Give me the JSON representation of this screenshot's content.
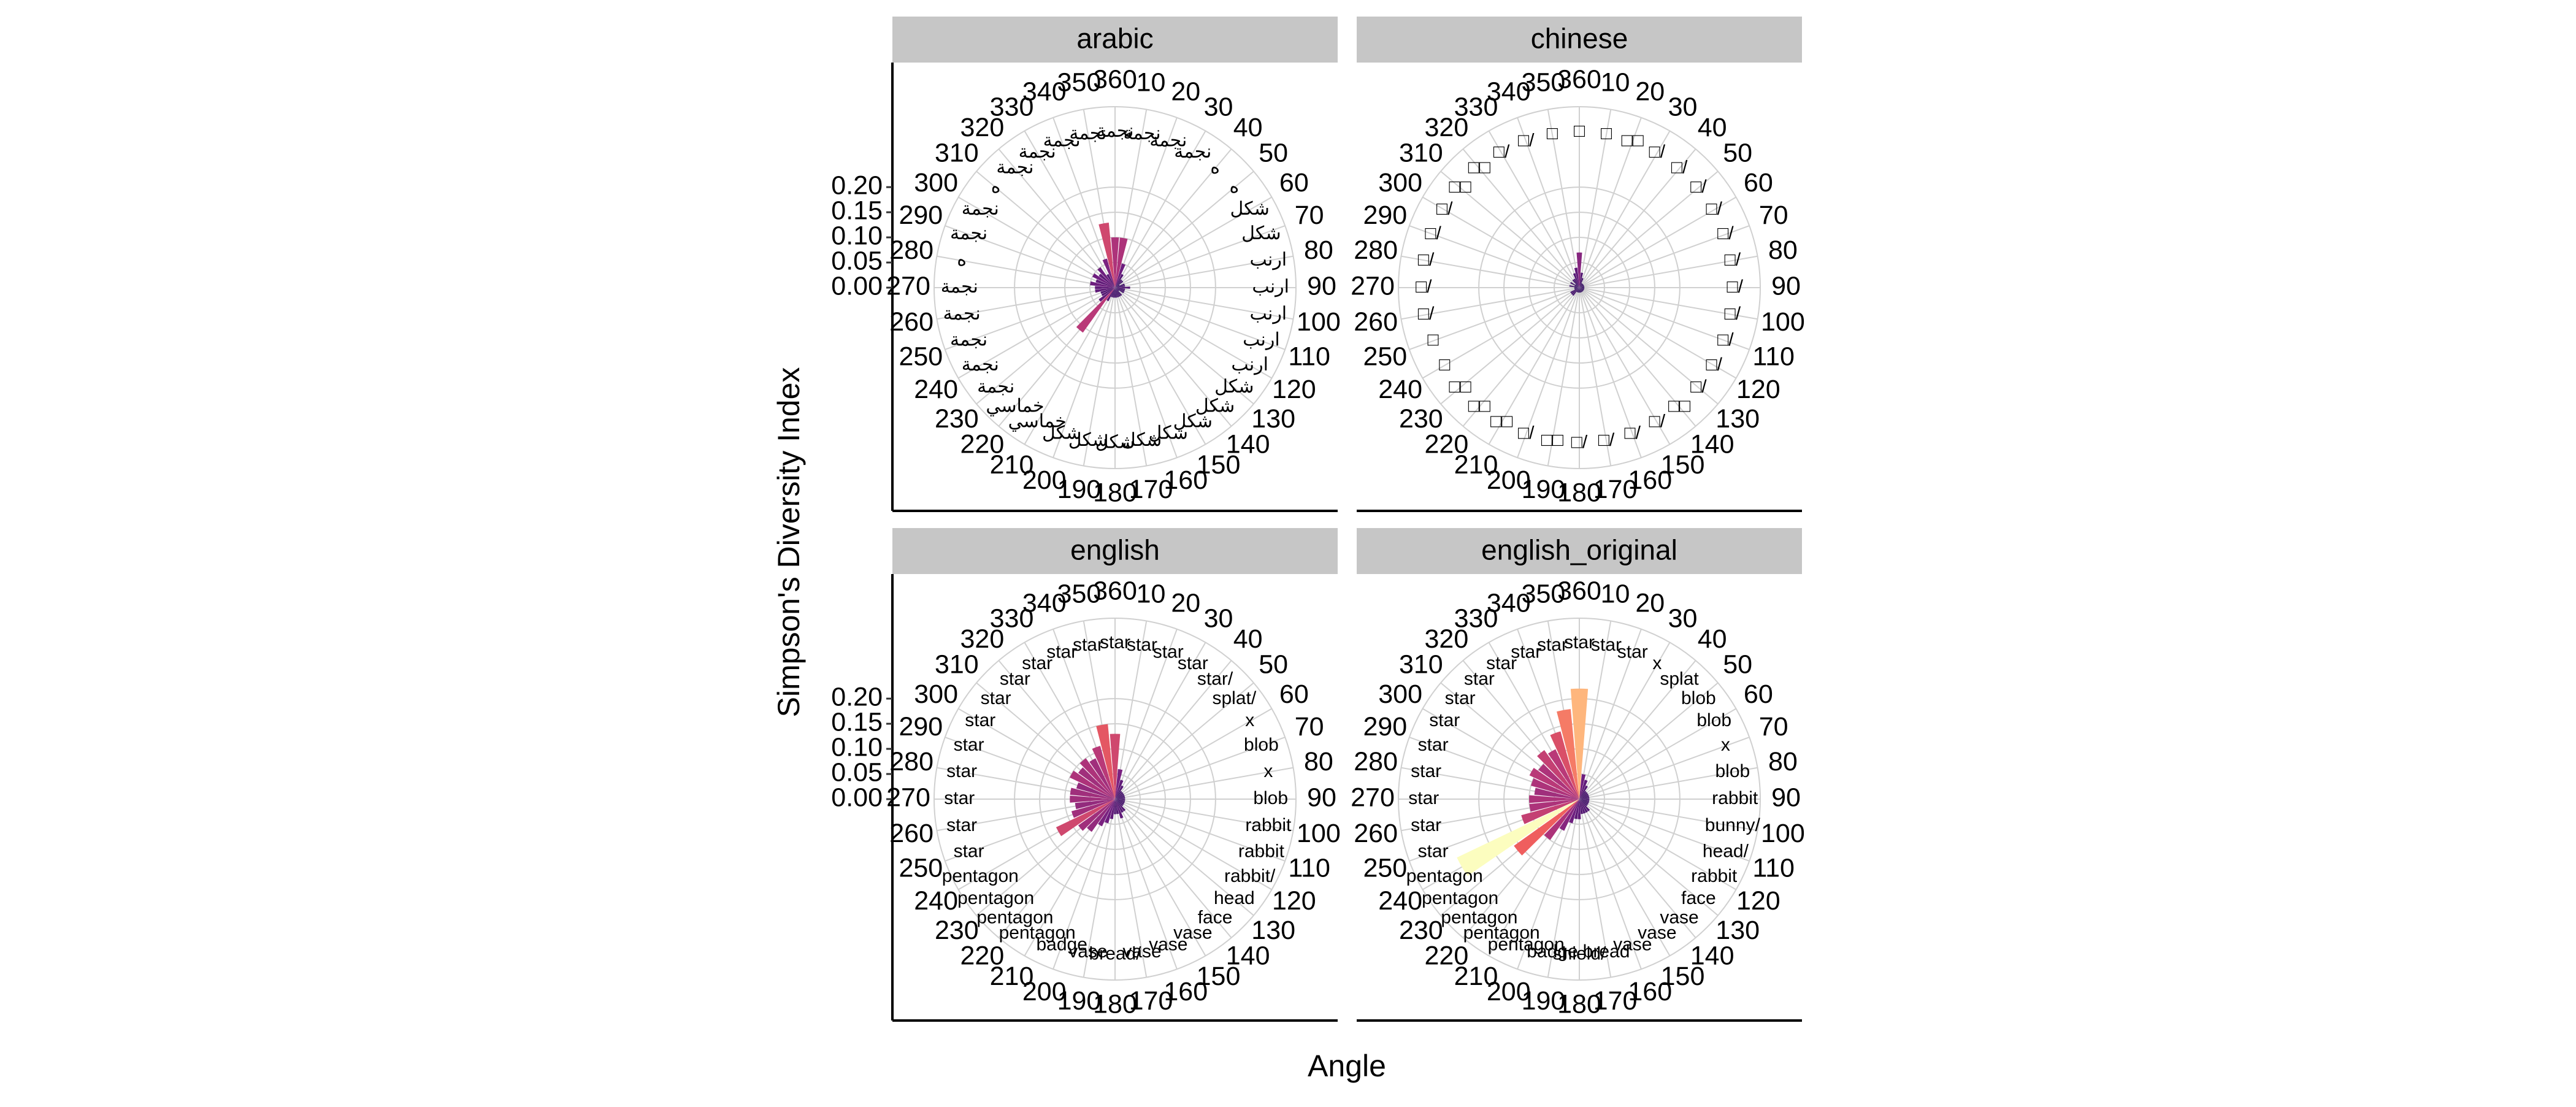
{
  "chart_data": {
    "type": "polar_bar",
    "ylabel": "Simpson's Diversity Index",
    "xlabel": "Angle",
    "ylim": [
      0,
      0.36
    ],
    "yticks": [
      {
        "value": 0,
        "label": "0.00"
      },
      {
        "value": 0.05,
        "label": "0.05"
      },
      {
        "value": 0.1,
        "label": "0.10"
      },
      {
        "value": 0.15,
        "label": "0.15"
      },
      {
        "value": 0.2,
        "label": "0.20"
      }
    ],
    "xticks": [
      10,
      20,
      30,
      40,
      50,
      60,
      70,
      80,
      90,
      100,
      110,
      120,
      130,
      140,
      150,
      160,
      170,
      180,
      190,
      200,
      210,
      220,
      230,
      240,
      250,
      260,
      270,
      280,
      290,
      300,
      310,
      320,
      330,
      340,
      350,
      360
    ],
    "color_scale": [
      "#2c115f",
      "#721f81",
      "#b73779",
      "#f1605d",
      "#feb078",
      "#fcfdbf"
    ],
    "grid": true,
    "facets": [
      {
        "title": "arabic",
        "values": [
          0.1,
          0.05,
          0.03,
          0.02,
          0.02,
          0.01,
          0.02,
          0.02,
          0.03,
          0.02,
          0.02,
          0.02,
          0.01,
          0.02,
          0.02,
          0.02,
          0.02,
          0.02,
          0.02,
          0.02,
          0.03,
          0.11,
          0.04,
          0.03,
          0.03,
          0.04,
          0.04,
          0.05,
          0.04,
          0.05,
          0.04,
          0.05,
          0.03,
          0.06,
          0.13,
          0.1
        ],
        "labels": [
          "نجمة",
          "نجمة",
          "نجمة",
          "ه",
          "ه",
          "شكل",
          "شكل",
          "ارنب",
          "ارنب",
          "ارنب",
          "ارنب",
          "ارنب",
          "شكل",
          "شكل",
          "شكل",
          "شكل",
          "شكل",
          "شكل",
          "شكل",
          "شكل",
          "خماسي",
          "خماسي",
          "نجمة",
          "نجمة",
          "نجمة",
          "نجمة",
          "نجمة",
          "ه",
          "نجمة",
          "نجمة",
          "ه",
          "نجمة",
          "نجمة",
          "نجمة",
          "نجمة",
          "نجمة"
        ]
      },
      {
        "title": "chinese",
        "values": [
          0.03,
          0.02,
          0.01,
          0.01,
          0.01,
          0.01,
          0.01,
          0.01,
          0.01,
          0.01,
          0.01,
          0.01,
          0.01,
          0.01,
          0.01,
          0.01,
          0.01,
          0.01,
          0.01,
          0.01,
          0.01,
          0.02,
          0.02,
          0.02,
          0.01,
          0.01,
          0.01,
          0.02,
          0.01,
          0.02,
          0.01,
          0.02,
          0.02,
          0.03,
          0.04,
          0.07
        ],
        "labels": [
          "□",
          "□□",
          "□/",
          "□/",
          "□/",
          "□/",
          "□/",
          "□/",
          "□/",
          "□/",
          "□/",
          "□/",
          "□/",
          "□□",
          "□/",
          "□/",
          "□/",
          "□/",
          "□□",
          "□/",
          "□□",
          "□□",
          "□□",
          "□",
          "□",
          "□/",
          "□/",
          "□/",
          "□/",
          "□/",
          "□□",
          "□□",
          "□/",
          "□/",
          "□",
          "□"
        ]
      },
      {
        "title": "english",
        "values": [
          0.06,
          0.04,
          0.03,
          0.02,
          0.02,
          0.02,
          0.02,
          0.02,
          0.02,
          0.02,
          0.02,
          0.02,
          0.02,
          0.03,
          0.03,
          0.04,
          0.03,
          0.03,
          0.04,
          0.05,
          0.06,
          0.08,
          0.09,
          0.13,
          0.09,
          0.08,
          0.09,
          0.09,
          0.08,
          0.1,
          0.09,
          0.1,
          0.09,
          0.11,
          0.15,
          0.13
        ],
        "labels": [
          "star",
          "star",
          "star",
          "star/",
          "splat/",
          "x",
          "blob",
          "x",
          "blob",
          "rabbit",
          "rabbit",
          "rabbit/",
          "head",
          "face",
          "vase",
          "vase",
          "vase",
          "bread/",
          "vase",
          "badge",
          "pentagon",
          "pentagon",
          "pentagon",
          "pentagon",
          "star",
          "star",
          "star",
          "star",
          "star",
          "star",
          "star",
          "star",
          "star",
          "star",
          "star",
          "star"
        ]
      },
      {
        "title": "english_original",
        "values": [
          0.05,
          0.04,
          0.03,
          0.02,
          0.02,
          0.02,
          0.02,
          0.02,
          0.02,
          0.02,
          0.02,
          0.02,
          0.02,
          0.03,
          0.03,
          0.03,
          0.03,
          0.04,
          0.04,
          0.05,
          0.07,
          0.1,
          0.16,
          0.27,
          0.12,
          0.1,
          0.1,
          0.09,
          0.1,
          0.11,
          0.1,
          0.12,
          0.11,
          0.14,
          0.18,
          0.22
        ],
        "labels": [
          "star",
          "star",
          "x",
          "splat",
          "blob",
          "blob",
          "x",
          "blob",
          "rabbit",
          "bunny/",
          "head/",
          "rabbit",
          "face",
          "vase",
          "vase",
          "vase",
          "bread",
          "shield/",
          "badge",
          "pentagon",
          "pentagon",
          "pentagon",
          "pentagon",
          "pentagon",
          "star",
          "star",
          "star",
          "star",
          "star",
          "star",
          "star",
          "star",
          "star",
          "star",
          "star",
          "star"
        ]
      }
    ]
  }
}
